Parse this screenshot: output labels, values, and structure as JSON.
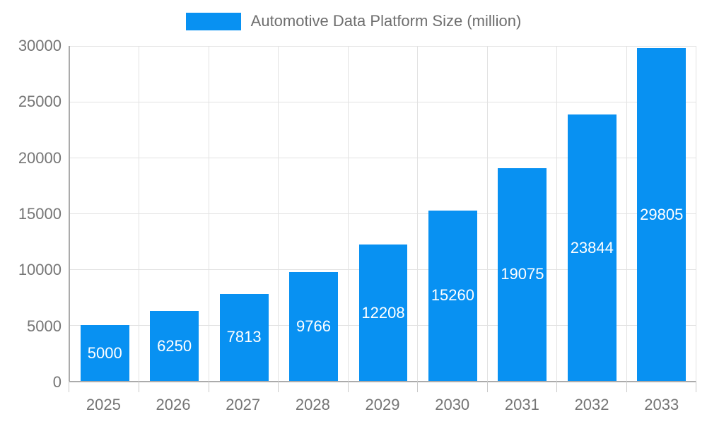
{
  "chart_data": {
    "type": "bar",
    "title": "Automotive Data Platform Size (million)",
    "legend": {
      "label": "Automotive Data Platform Size (million)",
      "position": "top-center"
    },
    "categories": [
      "2025",
      "2026",
      "2027",
      "2028",
      "2029",
      "2030",
      "2031",
      "2032",
      "2033"
    ],
    "values": [
      5000,
      6250,
      7813,
      9766,
      12208,
      15260,
      19075,
      23844,
      29805
    ],
    "xlabel": "",
    "ylabel": "",
    "ylim": [
      0,
      30000
    ],
    "yticks": [
      0,
      5000,
      10000,
      15000,
      20000,
      25000,
      30000
    ],
    "grid": true,
    "value_labels": "centered-inside-bars",
    "colors": {
      "bar": "#0891F2",
      "value_label_text": "#FFFFFF",
      "axis_text": "#757575",
      "legend_text": "#6E6E6E",
      "gridline": "#E2E2E2",
      "axis_line": "#ABABAB",
      "tick_mark": "#C9C9C9",
      "background": "#FFFFFF"
    }
  }
}
